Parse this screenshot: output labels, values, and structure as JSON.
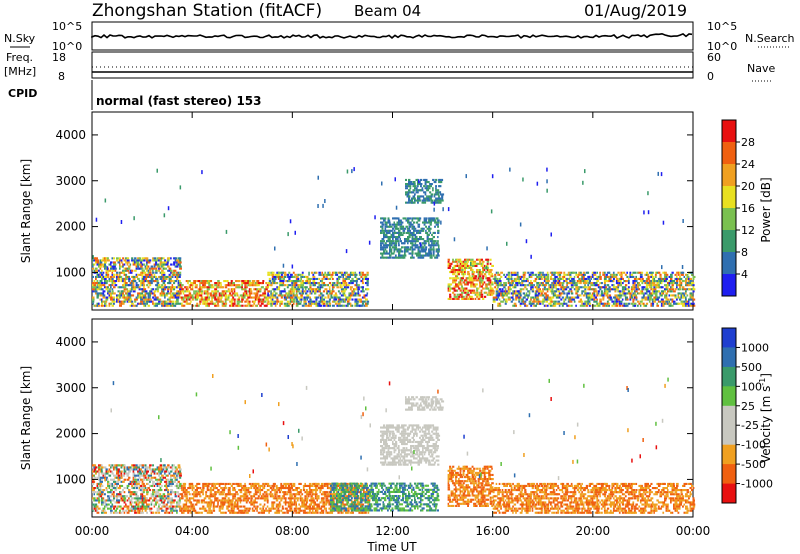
{
  "header": {
    "station": "Zhongshan Station (fitACF)",
    "beam": "Beam 04",
    "date": "01/Aug/2019"
  },
  "panels": {
    "nsky": {
      "left_label": "N.Sky",
      "tick_top": "10^5",
      "tick_bottom": "10^0",
      "right_label": "N.Search",
      "right_tick_top": "10^5",
      "right_tick_bottom": "10^0"
    },
    "freq": {
      "left_label_1": "Freq.",
      "left_label_2": "[MHz]",
      "tick_top": "18",
      "tick_bottom": "8",
      "right_label": "Nave",
      "right_tick_top": "60",
      "right_tick_bottom": "0"
    },
    "cpid": {
      "label": "CPID",
      "value": "normal (fast stereo) 153"
    }
  },
  "colors": {
    "power_scale": [
      "#1f1ff0",
      "#2f6fb0",
      "#3a9a6a",
      "#7ac050",
      "#e8e020",
      "#f0a020",
      "#f06010",
      "#e81010"
    ],
    "velocity_scale": [
      "#e81010",
      "#f06010",
      "#f0a020",
      "#c8c8c0",
      "#c8c8c0",
      "#60c040",
      "#3a9a6a",
      "#2f6fb0",
      "#1f3fd0"
    ]
  },
  "chart_data": [
    {
      "type": "heatmap",
      "name": "power",
      "ylabel": "Slant Range [km]",
      "ylim": [
        180,
        4500
      ],
      "xlim": [
        0,
        24
      ],
      "x_ticks": [
        "00:00",
        "04:00",
        "08:00",
        "12:00",
        "16:00",
        "20:00",
        "00:00"
      ],
      "y_ticks": [
        1000,
        2000,
        3000,
        4000
      ],
      "colorbar": {
        "label": "Power [dB]",
        "range": [
          0,
          32
        ],
        "ticks": [
          "4",
          "8",
          "12",
          "16",
          "20",
          "24",
          "28"
        ]
      },
      "regions": [
        {
          "t0": 0.0,
          "t1": 3.5,
          "r0": 250,
          "r1": 1300,
          "level": "mixed"
        },
        {
          "t0": 3.5,
          "t1": 7.0,
          "r0": 250,
          "r1": 800,
          "level": "high"
        },
        {
          "t0": 7.0,
          "t1": 11.0,
          "r0": 250,
          "r1": 1000,
          "level": "mixed"
        },
        {
          "t0": 11.5,
          "t1": 13.8,
          "r0": 1300,
          "r1": 2200,
          "level": "low"
        },
        {
          "t0": 12.5,
          "t1": 14.0,
          "r0": 2500,
          "r1": 3000,
          "level": "low"
        },
        {
          "t0": 14.2,
          "t1": 16.0,
          "r0": 400,
          "r1": 1300,
          "level": "high"
        },
        {
          "t0": 16.0,
          "t1": 24.0,
          "r0": 250,
          "r1": 1000,
          "level": "mixed"
        }
      ]
    },
    {
      "type": "heatmap",
      "name": "velocity",
      "ylabel": "Slant Range [km]",
      "ylim": [
        180,
        4500
      ],
      "xlim": [
        0,
        24
      ],
      "x_ticks": [
        "00:00",
        "04:00",
        "08:00",
        "12:00",
        "16:00",
        "20:00",
        "00:00"
      ],
      "y_ticks": [
        1000,
        2000,
        3000,
        4000
      ],
      "xlabel": "Time UT",
      "colorbar": {
        "label": "Velocity [m s",
        "label_sup": "-1",
        "label_close": "]",
        "ticks": [
          "1000",
          "500",
          "100",
          "25",
          "-25",
          "-100",
          "-500",
          "-1000"
        ]
      },
      "regions": [
        {
          "t0": 0.0,
          "t1": 3.5,
          "r0": 250,
          "r1": 1300,
          "level": "mixed"
        },
        {
          "t0": 3.5,
          "t1": 11.0,
          "r0": 250,
          "r1": 900,
          "level": "negative"
        },
        {
          "t0": 9.5,
          "t1": 13.8,
          "r0": 300,
          "r1": 900,
          "level": "positive"
        },
        {
          "t0": 11.5,
          "t1": 13.8,
          "r0": 1300,
          "r1": 2200,
          "level": "zero"
        },
        {
          "t0": 12.5,
          "t1": 14.0,
          "r0": 2500,
          "r1": 2800,
          "level": "zero"
        },
        {
          "t0": 14.2,
          "t1": 16.0,
          "r0": 400,
          "r1": 1300,
          "level": "negative"
        },
        {
          "t0": 16.0,
          "t1": 24.0,
          "r0": 250,
          "r1": 900,
          "level": "negative"
        }
      ]
    }
  ]
}
